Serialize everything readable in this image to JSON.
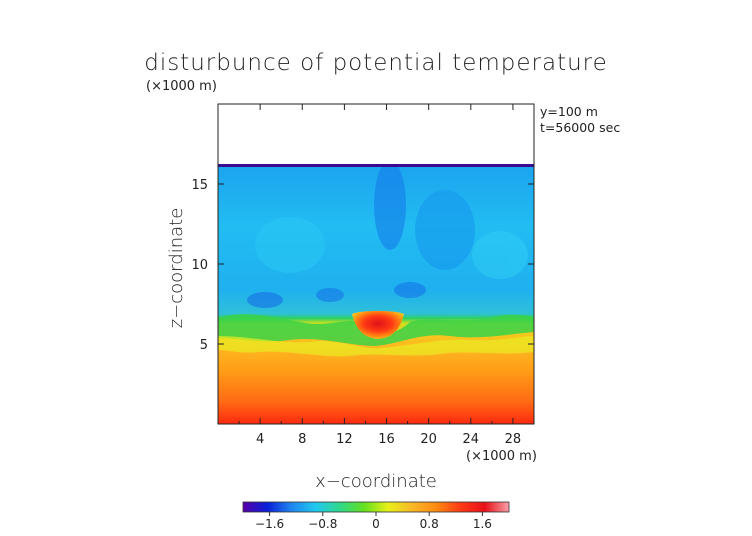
{
  "chart_data": {
    "type": "heatmap",
    "title": "disturbunce of potential temperature",
    "axis_unit_top": "(×1000 m)",
    "axis_unit_bottom": "(×1000 m)",
    "xlabel": "x−coordinate",
    "ylabel": "z−coordinate",
    "annotations": [
      "y=100 m",
      "t=56000 sec"
    ],
    "xlim": [
      0,
      30
    ],
    "ylim": [
      0,
      20
    ],
    "x_ticks": [
      4,
      8,
      12,
      16,
      20,
      24,
      28
    ],
    "x_tick_labels": [
      "4",
      "8",
      "12",
      "16",
      "20",
      "24",
      "28"
    ],
    "y_ticks": [
      5,
      10,
      15
    ],
    "y_tick_labels": [
      "5",
      "10",
      "15"
    ],
    "data_top_z": 16.3,
    "warm_bubble_center": [
      14.8,
      6.2
    ],
    "colorbar": {
      "range": [
        -2.0,
        2.0
      ],
      "ticks": [
        -1.6,
        -0.8,
        0,
        0.8,
        1.6
      ],
      "tick_labels": [
        "−1.6",
        "−0.8",
        "0",
        "0.8",
        "1.6"
      ],
      "colors": [
        "#5a00a8",
        "#0a1fd8",
        "#1f86f0",
        "#22c8f0",
        "#2fd88a",
        "#63e020",
        "#e8f01a",
        "#f8b828",
        "#ff8a12",
        "#ff3a14",
        "#e81018",
        "#f8a0a8"
      ]
    }
  }
}
